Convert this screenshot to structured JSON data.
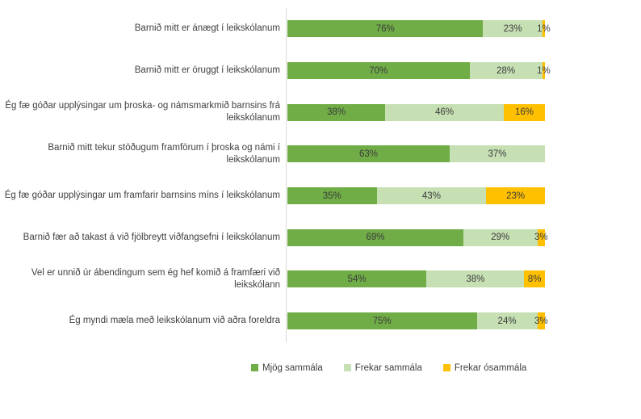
{
  "chart_data": {
    "type": "bar",
    "orientation": "horizontal",
    "stacked": true,
    "title": "",
    "xlabel": "",
    "ylabel": "",
    "xlim": [
      0,
      100
    ],
    "grid": false,
    "legend_position": "bottom",
    "value_format": "percent",
    "categories": [
      "Barnið mitt er ánægt í leikskólanum",
      "Barnið mitt er öruggt í leikskólanum",
      "Ég fæ góðar upplýsingar um þroska- og námsmarkmið barnsins frá leikskólanum",
      "Barnið mitt tekur stöðugum framförum í þroska og námi í leikskólanum",
      "Ég fæ góðar upplýsingar um framfarir barnsins míns í leikskólanum",
      "Barnið fær að takast á við fjölbreytt viðfangsefni í leikskólanum",
      "Vel er unnið úr ábendingum sem ég hef komið á framfæri við leikskólann",
      "Ég myndi mæla með leikskólanum við aðra foreldra"
    ],
    "series": [
      {
        "name": "Mjög sammála",
        "color": "#70AD47",
        "values": [
          76,
          70,
          38,
          63,
          35,
          69,
          54,
          75
        ]
      },
      {
        "name": "Frekar sammála",
        "color": "#C6E0B4",
        "values": [
          23,
          28,
          46,
          37,
          43,
          29,
          38,
          24
        ]
      },
      {
        "name": "Frekar ósammála",
        "color": "#FFC000",
        "values": [
          1,
          1,
          16,
          0,
          23,
          3,
          8,
          3
        ]
      }
    ],
    "bar_labels": [
      [
        "76%",
        "23%",
        "1%"
      ],
      [
        "70%",
        "28%",
        "1%"
      ],
      [
        "38%",
        "46%",
        "16%"
      ],
      [
        "63%",
        "37%",
        ""
      ],
      [
        "35%",
        "43%",
        "23%"
      ],
      [
        "69%",
        "29%",
        "3%"
      ],
      [
        "54%",
        "38%",
        "8%"
      ],
      [
        "75%",
        "24%",
        "3%"
      ]
    ],
    "legend": [
      {
        "label": "Mjög sammála",
        "color": "#70AD47"
      },
      {
        "label": "Frekar sammála",
        "color": "#C6E0B4"
      },
      {
        "label": "Frekar ósammála",
        "color": "#FFC000"
      }
    ],
    "axis_line_color": "#d9d9d9",
    "text_color": "#404040"
  }
}
